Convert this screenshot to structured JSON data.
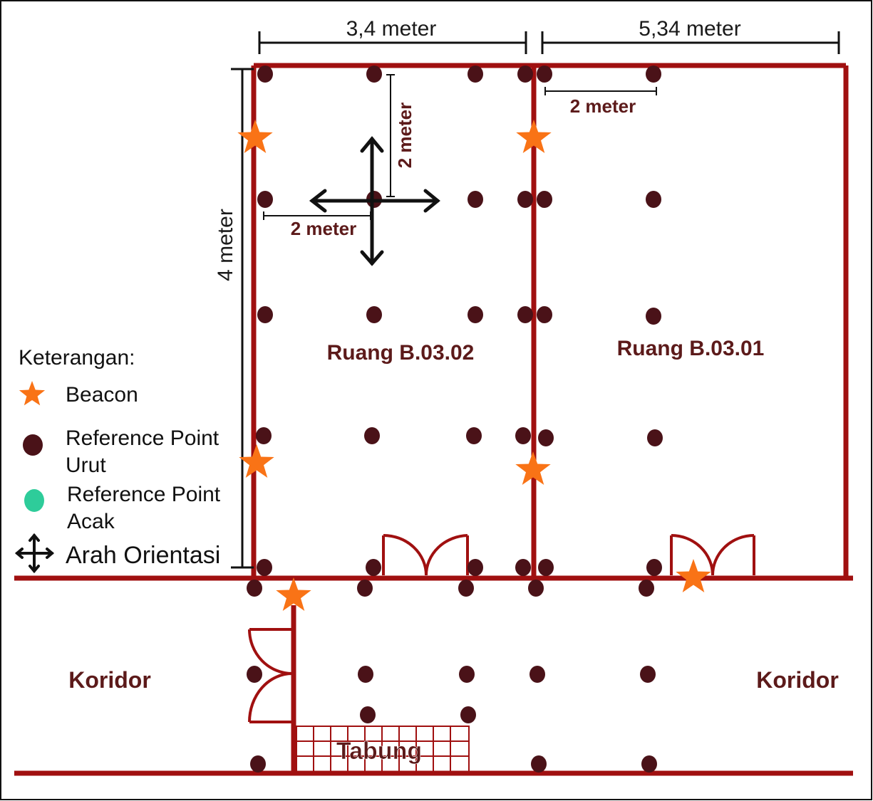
{
  "dimensions": {
    "top_left_width": "3,4 meter",
    "top_right_width": "5,34 meter",
    "left_height": "4 meter",
    "spacing_vertical": "2 meter",
    "spacing_horizontal_room1": "2 meter",
    "spacing_horizontal_room2": "2 meter"
  },
  "rooms": {
    "room_left": "Ruang B.03.02",
    "room_right": "Ruang B.03.01",
    "corridor_left": "Koridor",
    "corridor_right": "Koridor",
    "tank": "Tabung"
  },
  "legend": {
    "title": "Keterangan:",
    "beacon": "Beacon",
    "rp_urut_1": "Reference Point",
    "rp_urut_2": "Urut",
    "rp_acak_1": "Reference Point",
    "rp_acak_2": "Acak",
    "orientation": "Arah Orientasi"
  },
  "colors": {
    "wall": "#a01010",
    "reference_point_urut": "#4a1218",
    "reference_point_acak": "#2ecc9a",
    "beacon": "#f97316",
    "label": "#5c1a1a"
  }
}
